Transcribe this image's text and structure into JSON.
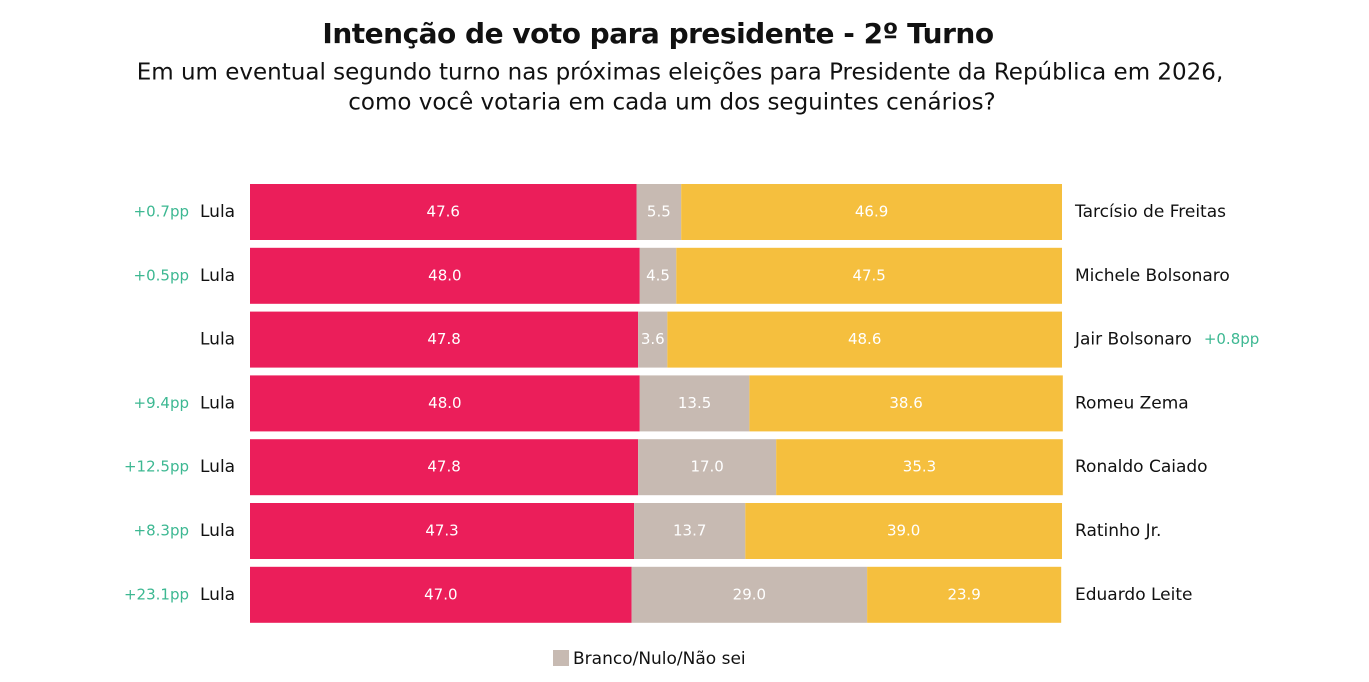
{
  "chart_data": {
    "type": "stacked_barh",
    "title": "Intenção de voto para presidente - 2º Turno",
    "subtitle": [
      "Em um eventual segundo turno nas próximas eleições para Presidente da República em 2026,",
      "como você votaria em cada um dos seguintes cenários?"
    ],
    "left_labels": [
      "Lula",
      "Lula",
      "Lula",
      "Lula",
      "Lula",
      "Lula",
      "Lula"
    ],
    "categories": [
      "Tarcísio de Freitas",
      "Michele Bolsonaro",
      "Jair Bolsonaro",
      "Romeu Zema",
      "Ronaldo Caiado",
      "Ratinho Jr.",
      "Eduardo Leite"
    ],
    "lead_labels_left": [
      "+0.7pp",
      "+0.5pp",
      null,
      "+9.4pp",
      "+12.5pp",
      "+8.3pp",
      "+23.1pp"
    ],
    "lead_labels_right": [
      null,
      null,
      "+0.8pp",
      null,
      null,
      null,
      null
    ],
    "series": [
      {
        "color": "#eb1e5a",
        "values": [
          47.6,
          48.0,
          47.8,
          48.0,
          47.8,
          47.3,
          47.0
        ],
        "value_labels": [
          "47.6",
          "48.0",
          "47.8",
          "48.0",
          "47.8",
          "47.3",
          "47.0"
        ]
      },
      {
        "name": "Branco/Nulo/Não sei",
        "color": "#c7bab2",
        "values": [
          5.5,
          4.5,
          3.6,
          13.5,
          17.0,
          13.7,
          29.0
        ],
        "value_labels": [
          "5.5",
          "4.5",
          "3.6",
          "13.5",
          "17.0",
          "13.7",
          "29.0"
        ]
      },
      {
        "color": "#f5bf3e",
        "values": [
          46.9,
          47.5,
          48.6,
          38.6,
          35.3,
          39.0,
          23.9
        ],
        "value_labels": [
          "46.9",
          "47.5",
          "48.6",
          "38.6",
          "35.3",
          "39.0",
          "23.9"
        ]
      }
    ],
    "legend_series": [
      1
    ],
    "xlim": [
      0,
      100
    ],
    "lead_color": "#3db892"
  }
}
